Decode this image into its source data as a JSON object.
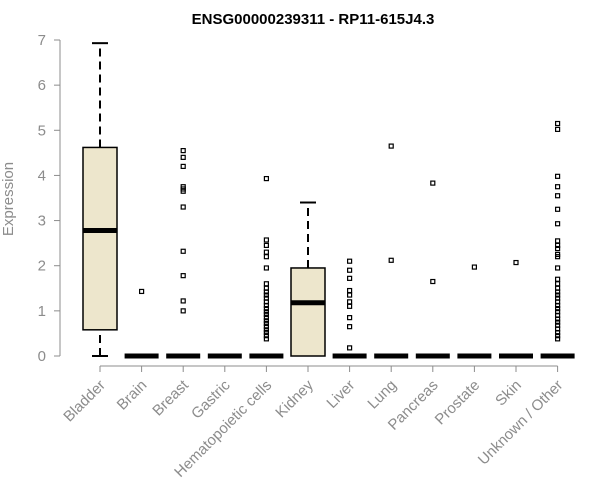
{
  "chart_data": {
    "type": "box",
    "title": "ENSG00000239311 - RP11-615J4.3",
    "ylabel": "Expression",
    "xlabel": "",
    "ylim": [
      0,
      7
    ],
    "yticks": [
      0,
      1,
      2,
      3,
      4,
      5,
      6,
      7
    ],
    "grid": false,
    "legend": "none",
    "box_fill": "#ede6cc",
    "box_stroke": "#000000",
    "axis_color": "#8c8c8c",
    "categories": [
      "Bladder",
      "Brain",
      "Breast",
      "Gastric",
      "Hematopoietic cells",
      "Kidney",
      "Liver",
      "Lung",
      "Pancreas",
      "Prostate",
      "Skin",
      "Unknown / Other"
    ],
    "boxes": [
      {
        "category": "Bladder",
        "min": 0,
        "q1": 0.58,
        "median": 2.78,
        "q3": 4.62,
        "max": 6.93,
        "outliers": []
      },
      {
        "category": "Brain",
        "min": 0,
        "q1": 0,
        "median": 0,
        "q3": 0,
        "max": 0,
        "outliers": [
          1.43
        ]
      },
      {
        "category": "Breast",
        "min": 0,
        "q1": 0,
        "median": 0,
        "q3": 0,
        "max": 0,
        "outliers": [
          4.55,
          4.4,
          4.2,
          3.75,
          3.7,
          3.65,
          3.3,
          2.32,
          1.78,
          1.22,
          1.0
        ]
      },
      {
        "category": "Gastric",
        "min": 0,
        "q1": 0,
        "median": 0,
        "q3": 0,
        "max": 0,
        "outliers": []
      },
      {
        "category": "Hematopoietic cells",
        "min": 0,
        "q1": 0,
        "median": 0,
        "q3": 0,
        "max": 0,
        "outliers": [
          3.93,
          2.57,
          2.45,
          2.3,
          2.2,
          1.95,
          1.6,
          1.5,
          1.42,
          1.35,
          1.28,
          1.2,
          1.12,
          1.05,
          0.98,
          0.92,
          0.85,
          0.78,
          0.72,
          0.65,
          0.58,
          0.52,
          0.45,
          0.38
        ]
      },
      {
        "category": "Kidney",
        "min": 0,
        "q1": 0,
        "median": 1.18,
        "q3": 1.95,
        "max": 3.4,
        "outliers": []
      },
      {
        "category": "Liver",
        "min": 0,
        "q1": 0,
        "median": 0,
        "q3": 0,
        "max": 0,
        "outliers": [
          2.1,
          1.9,
          1.72,
          1.45,
          1.35,
          1.2,
          1.1,
          0.85,
          0.65,
          0.18
        ]
      },
      {
        "category": "Lung",
        "min": 0,
        "q1": 0,
        "median": 0,
        "q3": 0,
        "max": 0,
        "outliers": [
          4.65,
          2.12
        ]
      },
      {
        "category": "Pancreas",
        "min": 0,
        "q1": 0,
        "median": 0,
        "q3": 0,
        "max": 0,
        "outliers": [
          3.83,
          1.65
        ]
      },
      {
        "category": "Prostate",
        "min": 0,
        "q1": 0,
        "median": 0,
        "q3": 0,
        "max": 0,
        "outliers": [
          1.97
        ]
      },
      {
        "category": "Skin",
        "min": 0,
        "q1": 0,
        "median": 0,
        "q3": 0,
        "max": 0,
        "outliers": [
          2.07
        ]
      },
      {
        "category": "Unknown / Other",
        "min": 0,
        "q1": 0,
        "median": 0,
        "q3": 0,
        "max": 0,
        "outliers": [
          5.15,
          5.02,
          3.98,
          3.75,
          3.55,
          3.25,
          2.93,
          2.55,
          2.45,
          2.38,
          2.25,
          2.2,
          1.95,
          1.7,
          1.6,
          1.5,
          1.42,
          1.35,
          1.28,
          1.2,
          1.12,
          1.05,
          0.98,
          0.9,
          0.82,
          0.75,
          0.68,
          0.6,
          0.52,
          0.45,
          0.38
        ]
      }
    ]
  }
}
